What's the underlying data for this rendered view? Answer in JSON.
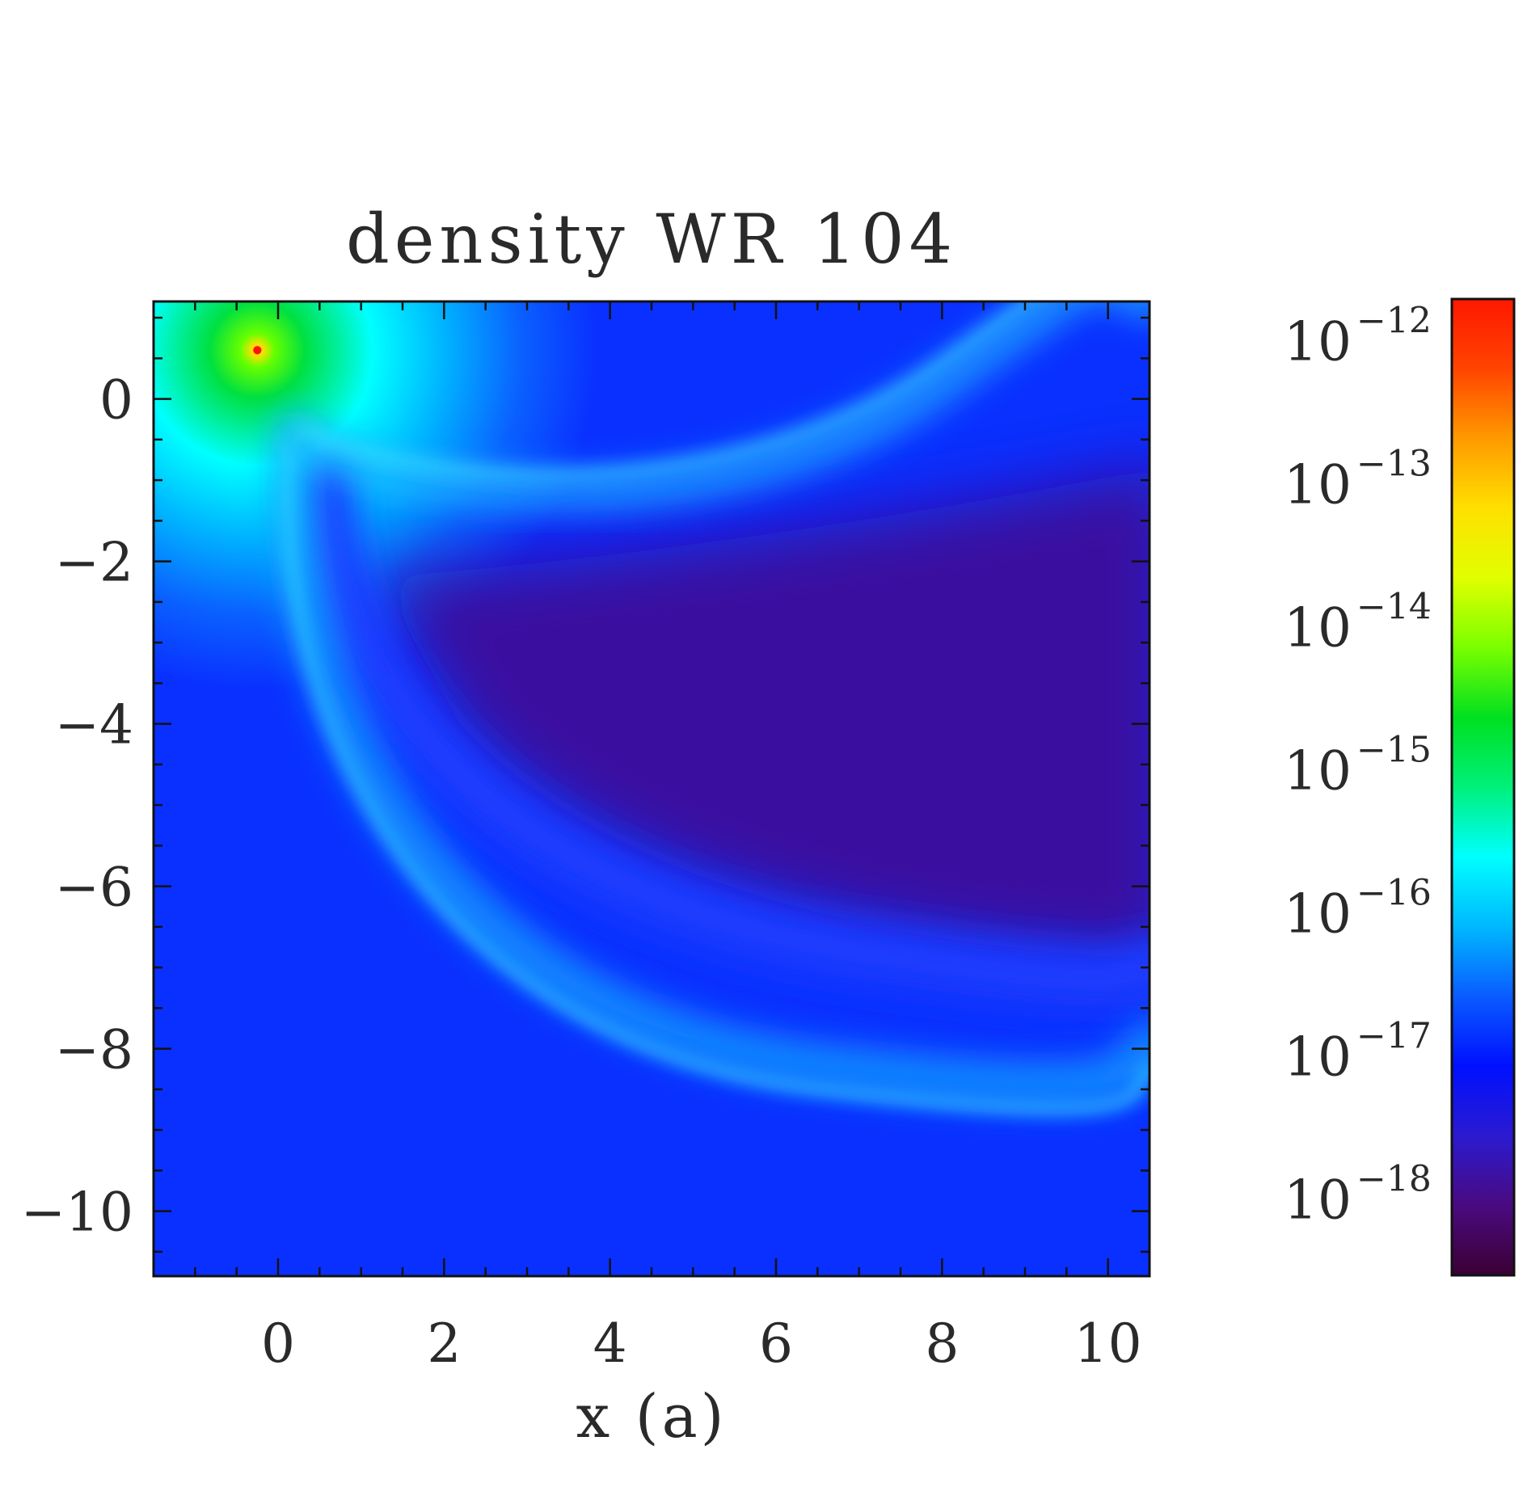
{
  "chart_data": {
    "type": "heatmap",
    "title": "density WR 104",
    "xlabel": "x (a)",
    "ylabel": "",
    "xlim": [
      -1.5,
      10.5
    ],
    "ylim": [
      -10.8,
      1.2
    ],
    "x_ticks": [
      0,
      2,
      4,
      6,
      8,
      10
    ],
    "x_tick_labels": [
      "0",
      "2",
      "4",
      "6",
      "8",
      "10"
    ],
    "y_ticks": [
      0,
      -2,
      -4,
      -6,
      -8,
      -10
    ],
    "y_tick_labels": [
      "0",
      "−2",
      "−4",
      "−6",
      "−8",
      "−10"
    ],
    "colorbar": {
      "scale": "log",
      "range": [
        3e-19,
        2e-12
      ],
      "ticks": [
        1e-12,
        1e-13,
        1e-14,
        1e-15,
        1e-16,
        1e-17,
        1e-18
      ],
      "tick_labels": [
        {
          "base": "10",
          "exp": "−12"
        },
        {
          "base": "10",
          "exp": "−13"
        },
        {
          "base": "10",
          "exp": "−14"
        },
        {
          "base": "10",
          "exp": "−15"
        },
        {
          "base": "10",
          "exp": "−16"
        },
        {
          "base": "10",
          "exp": "−17"
        },
        {
          "base": "10",
          "exp": "−18"
        }
      ],
      "colormap": [
        "#3a0033",
        "#4a0a80",
        "#2b1ad0",
        "#0010ff",
        "#0a5cff",
        "#00b8ff",
        "#00ffff",
        "#00f07a",
        "#00e020",
        "#7aff00",
        "#e0ff00",
        "#ffe000",
        "#ff9a00",
        "#ff4400",
        "#ff1800"
      ]
    },
    "features": {
      "star_position": {
        "x": -0.25,
        "y": 0.6
      },
      "shock_apex": {
        "x": 0.2,
        "y": -0.4
      }
    }
  }
}
